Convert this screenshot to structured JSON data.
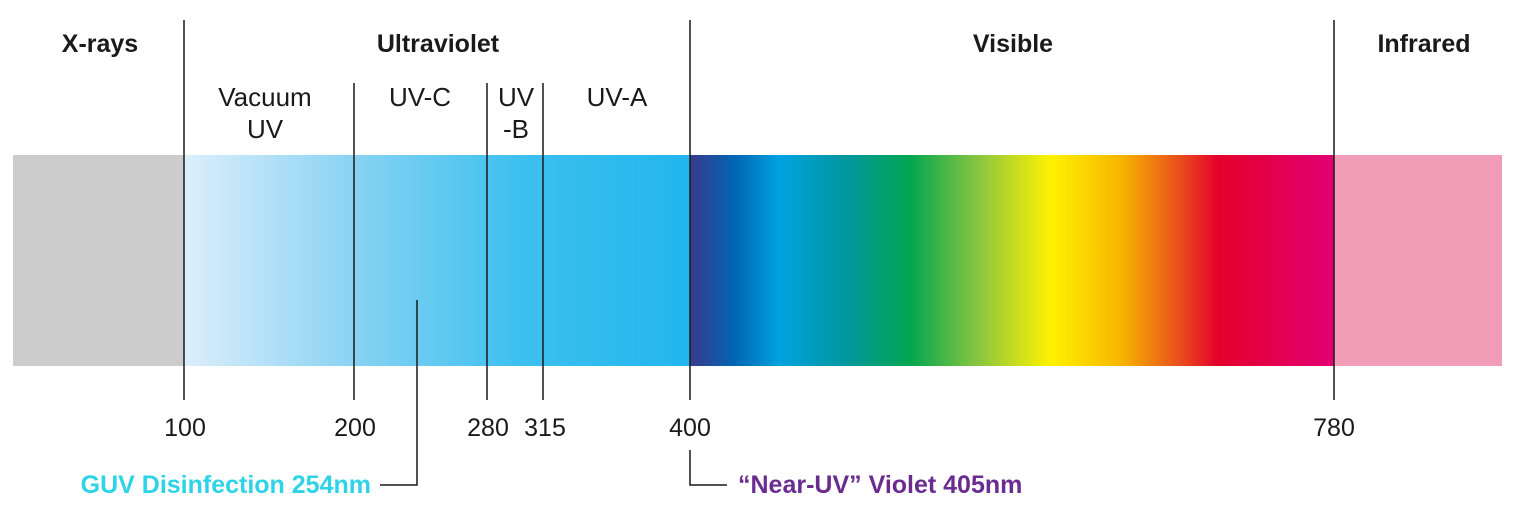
{
  "regions": {
    "xrays": "X-rays",
    "ultraviolet": "Ultraviolet",
    "visible": "Visible",
    "infrared": "Infrared"
  },
  "uv_bands": {
    "vacuum_line1": "Vacuum",
    "vacuum_line2": "UV",
    "uvc": "UV-C",
    "uvb_line1": "UV",
    "uvb_line2": "-B",
    "uva": "UV-A"
  },
  "wavelengths_nm": {
    "w100": "100",
    "w200": "200",
    "w280": "280",
    "w315": "315",
    "w400": "400",
    "w780": "780"
  },
  "callouts": {
    "guv": "GUV Disinfection 254nm",
    "near_uv": "“Near-UV” Violet 405nm"
  },
  "colors": {
    "xray_gray": "#cccccc",
    "uv_blue": "#22b8ee",
    "infrared_pink": "#f29cb8",
    "guv_text": "#2fd3e8",
    "near_uv_text": "#6a2c91"
  }
}
